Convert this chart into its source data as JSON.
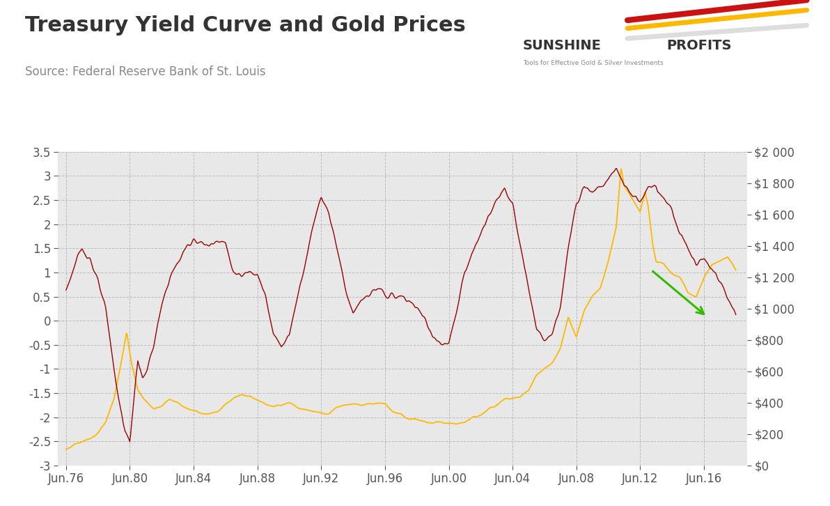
{
  "title": "Treasury Yield Curve and Gold Prices",
  "source": "Source: Federal Reserve Bank of St. Louis",
  "background_color": "#ffffff",
  "plot_bg_color": "#e8e8e8",
  "yield_color": "#990000",
  "gold_color": "#FFB800",
  "arrow_color": "#33bb00",
  "left_ylim": [
    -3.0,
    3.5
  ],
  "right_ylim": [
    0,
    2000
  ],
  "left_yticks": [
    -3.0,
    -2.5,
    -2.0,
    -1.5,
    -1.0,
    -0.5,
    0.0,
    0.5,
    1.0,
    1.5,
    2.0,
    2.5,
    3.0,
    3.5
  ],
  "right_yticks": [
    0,
    200,
    400,
    600,
    800,
    1000,
    1200,
    1400,
    1600,
    1800,
    2000
  ],
  "right_yticklabels": [
    "$0",
    "$200",
    "$400",
    "$600",
    "$800",
    "$1 000",
    "$1 200",
    "$1 400",
    "$1 600",
    "$1 800",
    "$2 000"
  ],
  "xtick_labels": [
    "Jun.76",
    "Jun.80",
    "Jun.84",
    "Jun.88",
    "Jun.92",
    "Jun.96",
    "Jun.00",
    "Jun.04",
    "Jun.08",
    "Jun.12",
    "Jun.16"
  ],
  "xtick_positions": [
    1976.5,
    1980.5,
    1984.5,
    1988.5,
    1992.5,
    1996.5,
    2000.5,
    2004.5,
    2008.5,
    2012.5,
    2016.5
  ],
  "title_fontsize": 22,
  "source_fontsize": 12,
  "tick_fontsize": 12,
  "grid_color": "#bbbbbb",
  "logo_text": "SUNSHINE PROFITS",
  "logo_sub": "Tools for Effective Gold & Silver Investments"
}
